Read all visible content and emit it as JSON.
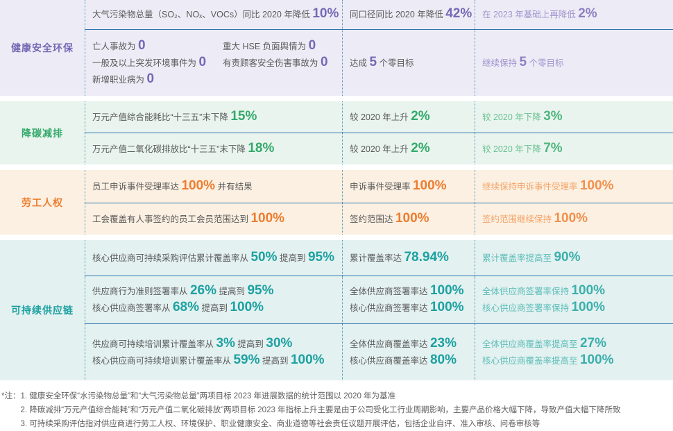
{
  "palette": {
    "row_divider": "#2E75AD",
    "column_divider_dotted": "#4E96BD",
    "body_text": "#5A5A5A",
    "footnote_text": "#5F5F5F"
  },
  "sections": [
    {
      "id": "hse",
      "label": "健康安全环保",
      "colors": {
        "strong": "#7668B4",
        "mid": "#8E7FC4",
        "light": "#A193CE",
        "bg": "#EDECF6"
      },
      "rows": [
        {
          "cells": [
            {
              "lines": [
                [
                  {
                    "t": "大气污染物总量（SO₂、NOₓ、VOCs）同比 2020 年降低 "
                  },
                  {
                    "v": "10%"
                  }
                ]
              ]
            },
            {
              "lines": [
                [
                  {
                    "t": "同口径同比 2020 年降低 "
                  },
                  {
                    "v": "42%"
                  }
                ]
              ]
            },
            {
              "accent": true,
              "lines": [
                [
                  {
                    "t": "在 2023 年基础上再降低 "
                  },
                  {
                    "v": "2%"
                  }
                ]
              ]
            }
          ]
        },
        {
          "cells": [
            {
              "columns": [
                {
                  "lines": [
                    [
                      {
                        "t": "亡人事故为 "
                      },
                      {
                        "v": "0"
                      }
                    ],
                    [
                      {
                        "t": "一般及以上突发环境事件为 "
                      },
                      {
                        "v": "0"
                      }
                    ],
                    [
                      {
                        "t": "新增职业病为 "
                      },
                      {
                        "v": "0"
                      }
                    ]
                  ]
                },
                {
                  "lines": [
                    [
                      {
                        "t": "重大 HSE 负面舆情为 "
                      },
                      {
                        "v": "0"
                      }
                    ],
                    [
                      {
                        "t": "有责顾客安全伤害事故为 "
                      },
                      {
                        "v": "0"
                      }
                    ]
                  ]
                }
              ]
            },
            {
              "lines": [
                [
                  {
                    "t": "达成 "
                  },
                  {
                    "v": "5"
                  },
                  {
                    "t": " 个零目标"
                  }
                ]
              ]
            },
            {
              "accent": true,
              "lines": [
                [
                  {
                    "t": "继续保持 "
                  },
                  {
                    "v": "5"
                  },
                  {
                    "t": " 个零目标"
                  }
                ]
              ]
            }
          ]
        }
      ]
    },
    {
      "id": "carbon",
      "label": "降碳减排",
      "colors": {
        "strong": "#35A96C",
        "mid": "#4FB680",
        "light": "#6CC292",
        "bg": "#E9F4EE"
      },
      "rows": [
        {
          "cells": [
            {
              "lines": [
                [
                  {
                    "t": "万元产值综合能耗比“十三五”末下降 "
                  },
                  {
                    "v": "15%"
                  }
                ]
              ]
            },
            {
              "lines": [
                [
                  {
                    "t": "较 2020 年上升 "
                  },
                  {
                    "v": "2%"
                  }
                ]
              ]
            },
            {
              "accent": true,
              "lines": [
                [
                  {
                    "t": "较 2020 年下降 "
                  },
                  {
                    "v": "3%"
                  }
                ]
              ]
            }
          ]
        },
        {
          "cells": [
            {
              "lines": [
                [
                  {
                    "t": "万元产值二氧化碳排放比“十三五”末下降 "
                  },
                  {
                    "v": "18%"
                  }
                ]
              ]
            },
            {
              "lines": [
                [
                  {
                    "t": "较 2020 年上升 "
                  },
                  {
                    "v": "2%"
                  }
                ]
              ]
            },
            {
              "accent": true,
              "lines": [
                [
                  {
                    "t": "较 2020 年下降 "
                  },
                  {
                    "v": "7%"
                  }
                ]
              ]
            }
          ]
        }
      ]
    },
    {
      "id": "labor",
      "label": "劳工人权",
      "colors": {
        "strong": "#ED7D2F",
        "mid": "#F0914D",
        "light": "#F3A468",
        "bg": "#FCF0E2"
      },
      "rows": [
        {
          "cells": [
            {
              "lines": [
                [
                  {
                    "t": "员工申诉事件受理率达 "
                  },
                  {
                    "v": "100%"
                  },
                  {
                    "t": " 并有结果"
                  }
                ]
              ]
            },
            {
              "lines": [
                [
                  {
                    "t": "申诉事件受理率 "
                  },
                  {
                    "v": "100%"
                  }
                ]
              ]
            },
            {
              "accent": true,
              "lines": [
                [
                  {
                    "t": "继续保持申诉事件受理率 "
                  },
                  {
                    "v": "100%"
                  }
                ]
              ]
            }
          ]
        },
        {
          "cells": [
            {
              "lines": [
                [
                  {
                    "t": "工会覆盖有人事签约的员工会员范围达到 "
                  },
                  {
                    "v": "100%"
                  }
                ]
              ]
            },
            {
              "lines": [
                [
                  {
                    "t": "签约范围达 "
                  },
                  {
                    "v": "100%"
                  }
                ]
              ]
            },
            {
              "accent": true,
              "lines": [
                [
                  {
                    "t": "签约范围继续保持 "
                  },
                  {
                    "v": "100%"
                  }
                ]
              ]
            }
          ]
        }
      ]
    },
    {
      "id": "supply",
      "label": "可持续供应链",
      "colors": {
        "strong": "#1DA1A1",
        "mid": "#3BAFAC",
        "light": "#5CBDB9",
        "bg": "#E3F1F0"
      },
      "rows": [
        {
          "cells": [
            {
              "lines": [
                [
                  {
                    "t": "核心供应商可持续采购评估累计覆盖率从 "
                  },
                  {
                    "v": "50%"
                  },
                  {
                    "t": " 提高到 "
                  },
                  {
                    "v": "95%"
                  }
                ]
              ]
            },
            {
              "lines": [
                [
                  {
                    "t": "累计覆盖率达 "
                  },
                  {
                    "v": "78.94%"
                  }
                ]
              ]
            },
            {
              "accent": true,
              "lines": [
                [
                  {
                    "t": "累计覆盖率提高至 "
                  },
                  {
                    "v": "90%"
                  }
                ]
              ]
            }
          ]
        },
        {
          "cells": [
            {
              "lines": [
                [
                  {
                    "t": "供应商行为准则签署率从 "
                  },
                  {
                    "v": "26%"
                  },
                  {
                    "t": " 提高到 "
                  },
                  {
                    "v": "95%"
                  }
                ],
                [
                  {
                    "t": "核心供应商签署率从 "
                  },
                  {
                    "v": "68%"
                  },
                  {
                    "t": " 提高到 "
                  },
                  {
                    "v": "100%"
                  }
                ]
              ]
            },
            {
              "lines": [
                [
                  {
                    "t": "全体供应商签署率达 "
                  },
                  {
                    "v": "100%"
                  }
                ],
                [
                  {
                    "t": "核心供应商签署率达 "
                  },
                  {
                    "v": "100%"
                  }
                ]
              ]
            },
            {
              "accent": true,
              "lines": [
                [
                  {
                    "t": "全体供应商签署率保持 "
                  },
                  {
                    "v": "100%"
                  }
                ],
                [
                  {
                    "t": "核心供应商签署率保持 "
                  },
                  {
                    "v": "100%"
                  }
                ]
              ]
            }
          ]
        },
        {
          "cells": [
            {
              "lines": [
                [
                  {
                    "t": "供应商可持续培训累计覆盖率从 "
                  },
                  {
                    "v": "3%"
                  },
                  {
                    "t": " 提高到 "
                  },
                  {
                    "v": "30%"
                  }
                ],
                [
                  {
                    "t": "核心供应商可持续培训累计覆盖率从 "
                  },
                  {
                    "v": "59%"
                  },
                  {
                    "t": " 提高到 "
                  },
                  {
                    "v": "100%"
                  }
                ]
              ]
            },
            {
              "lines": [
                [
                  {
                    "t": "全体供应商覆盖率达 "
                  },
                  {
                    "v": "23%"
                  }
                ],
                [
                  {
                    "t": "核心供应商覆盖率达 "
                  },
                  {
                    "v": "80%"
                  }
                ]
              ]
            },
            {
              "accent": true,
              "lines": [
                [
                  {
                    "t": "全体供应商覆盖率提高至 "
                  },
                  {
                    "v": "27%"
                  }
                ],
                [
                  {
                    "t": "核心供应商覆盖率提高至 "
                  },
                  {
                    "v": "100%"
                  }
                ]
              ]
            }
          ]
        }
      ]
    }
  ],
  "footnotes": {
    "marker": "*注：",
    "items": [
      "1. 健康安全环保“水污染物总量”和“大气污染物总量”两项目标 2023 年进展数据的统计范围以 2020 年为基准",
      "2. 降碳减排“万元产值综合能耗”和“万元产值二氧化碳排放”两项目标 2023 年指标上升主要是由于公司受化工行业周期影响，主要产品价格大幅下降，导致产值大幅下降所致",
      "3. 可持续采购评估指对供应商进行劳工人权、环境保护、职业健康安全、商业道德等社会责任议题开展评估，包括企业自评、准入审核、问卷审核等"
    ]
  }
}
